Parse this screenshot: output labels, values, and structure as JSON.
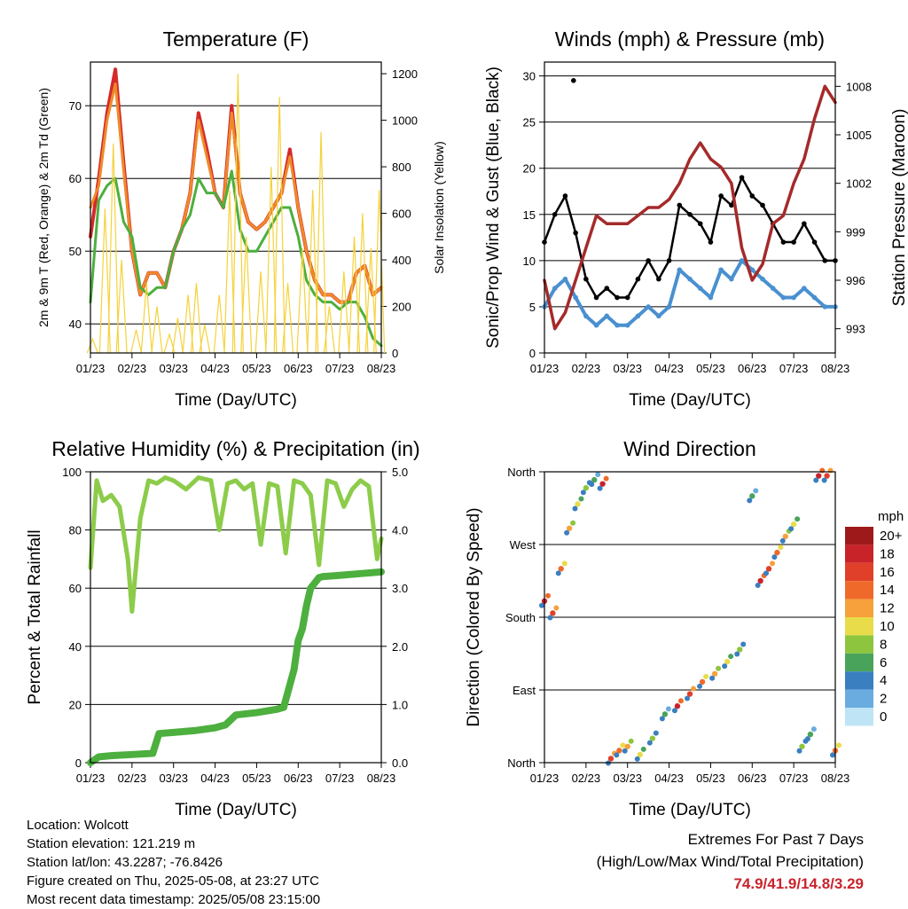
{
  "chart_data": [
    {
      "type": "line",
      "id": "temperature",
      "title": "Temperature (F)",
      "xlabel": "Time (Day/UTC)",
      "ylabel": "2m & 9m T (Red, Orange) & 2m Td (Green)",
      "y2label": "Solar Insolation (Yellow)",
      "x_ticks": [
        "01/23",
        "02/23",
        "03/23",
        "04/23",
        "05/23",
        "06/23",
        "07/23",
        "08/23"
      ],
      "ylim": [
        36,
        76
      ],
      "y_ticks": [
        40,
        50,
        60,
        70
      ],
      "y2lim": [
        0,
        1250
      ],
      "y2_ticks": [
        0,
        200,
        400,
        600,
        800,
        1000,
        1200
      ],
      "series": [
        {
          "key": "t2m",
          "color": "#d42a2a",
          "x": [
            0,
            0.2,
            0.4,
            0.6,
            0.8,
            1.0,
            1.2,
            1.4,
            1.6,
            1.8,
            2.0,
            2.2,
            2.4,
            2.6,
            2.8,
            3.0,
            3.2,
            3.4,
            3.6,
            3.8,
            4.0,
            4.2,
            4.4,
            4.6,
            4.8,
            5.0,
            5.2,
            5.4,
            5.6,
            5.8,
            6.0,
            6.2,
            6.4,
            6.6,
            6.8,
            7.0
          ],
          "values": [
            52,
            60,
            69,
            75,
            62,
            50,
            44,
            47,
            47,
            45,
            50,
            53,
            58,
            69,
            64,
            58,
            56,
            70,
            58,
            54,
            53,
            54,
            56,
            58,
            64,
            56,
            50,
            46,
            44,
            44,
            43,
            43,
            47,
            48,
            44,
            45
          ]
        },
        {
          "key": "t9m",
          "color": "#ef8a2a",
          "x": [
            0,
            0.2,
            0.4,
            0.6,
            0.8,
            1.0,
            1.2,
            1.4,
            1.6,
            1.8,
            2.0,
            2.2,
            2.4,
            2.6,
            2.8,
            3.0,
            3.2,
            3.4,
            3.6,
            3.8,
            4.0,
            4.2,
            4.4,
            4.6,
            4.8,
            5.0,
            5.2,
            5.4,
            5.6,
            5.8,
            6.0,
            6.2,
            6.4,
            6.6,
            6.8,
            7.0
          ],
          "values": [
            56,
            59,
            68,
            73,
            61,
            50,
            44,
            47,
            47,
            45,
            50,
            53,
            58,
            68,
            63,
            58,
            56,
            69,
            58,
            54,
            53,
            54,
            56,
            58,
            63,
            56,
            50,
            46,
            44,
            44,
            43,
            43,
            47,
            48,
            44,
            45
          ]
        },
        {
          "key": "td2m",
          "color": "#4caf3e",
          "x": [
            0,
            0.2,
            0.4,
            0.6,
            0.8,
            1.0,
            1.2,
            1.4,
            1.6,
            1.8,
            2.0,
            2.2,
            2.4,
            2.6,
            2.8,
            3.0,
            3.2,
            3.4,
            3.6,
            3.8,
            4.0,
            4.2,
            4.4,
            4.6,
            4.8,
            5.0,
            5.2,
            5.4,
            5.6,
            5.8,
            6.0,
            6.2,
            6.4,
            6.6,
            6.8,
            7.0
          ],
          "values": [
            43,
            57,
            59,
            60,
            54,
            52,
            45,
            44,
            45,
            45,
            50,
            53,
            55,
            60,
            58,
            58,
            56,
            61,
            53,
            50,
            50,
            52,
            54,
            56,
            56,
            52,
            46,
            44,
            43,
            43,
            42,
            43,
            43,
            41,
            38,
            37
          ]
        },
        {
          "key": "solar",
          "color": "#f5d23a",
          "x": [
            0.05,
            0.35,
            0.55,
            0.75,
            1.1,
            1.35,
            1.6,
            1.9,
            2.1,
            2.35,
            2.55,
            2.75,
            3.1,
            3.35,
            3.55,
            3.75,
            4.1,
            4.35,
            4.55,
            4.75,
            5.1,
            5.35,
            5.55,
            5.75,
            6.1,
            6.35,
            6.55,
            6.75,
            6.95
          ],
          "values": [
            60,
            620,
            900,
            400,
            100,
            300,
            200,
            80,
            150,
            250,
            300,
            120,
            250,
            700,
            1200,
            500,
            350,
            800,
            1100,
            300,
            450,
            700,
            950,
            200,
            350,
            500,
            600,
            450,
            700
          ]
        }
      ]
    },
    {
      "type": "scatter",
      "id": "winds",
      "title": "Winds (mph) & Pressure (mb)",
      "xlabel": "Time (Day/UTC)",
      "ylabel": "Sonic/Prop Wind & Gust (Blue, Black)",
      "y2label": "Station Pressure (Maroon)",
      "x_ticks": [
        "01/23",
        "02/23",
        "03/23",
        "04/23",
        "05/23",
        "06/23",
        "07/23",
        "08/23"
      ],
      "ylim": [
        0,
        31.5
      ],
      "y_ticks": [
        0,
        5,
        10,
        15,
        20,
        25,
        30
      ],
      "y2lim": [
        991.5,
        1009.5
      ],
      "y2_ticks": [
        993,
        996,
        999,
        1002,
        1005,
        1008
      ],
      "series": [
        {
          "key": "wind",
          "color": "#4a90d0",
          "x": [
            0,
            0.25,
            0.5,
            0.75,
            1.0,
            1.25,
            1.5,
            1.75,
            2.0,
            2.25,
            2.5,
            2.75,
            3.0,
            3.25,
            3.5,
            3.75,
            4.0,
            4.25,
            4.5,
            4.75,
            5.0,
            5.25,
            5.5,
            5.75,
            6.0,
            6.25,
            6.5,
            6.75,
            7.0
          ],
          "values": [
            5,
            7,
            8,
            6,
            4,
            3,
            4,
            3,
            3,
            4,
            5,
            4,
            5,
            9,
            8,
            7,
            6,
            9,
            8,
            10,
            9,
            8,
            7,
            6,
            6,
            7,
            6,
            5,
            5
          ]
        },
        {
          "key": "gust",
          "color": "#000000",
          "x": [
            0,
            0.25,
            0.5,
            0.75,
            1.0,
            1.25,
            1.5,
            1.75,
            2.0,
            2.25,
            2.5,
            2.75,
            3.0,
            3.25,
            3.5,
            3.75,
            4.0,
            4.25,
            4.5,
            4.75,
            5.0,
            5.25,
            5.5,
            5.75,
            6.0,
            6.25,
            6.5,
            6.75,
            7.0
          ],
          "values": [
            12,
            15,
            17,
            13,
            8,
            6,
            7,
            6,
            6,
            8,
            10,
            8,
            10,
            16,
            15,
            14,
            12,
            17,
            16,
            19,
            17,
            16,
            14,
            12,
            12,
            14,
            12,
            10,
            10
          ]
        },
        {
          "key": "pressure",
          "color": "#a52a2a",
          "x": [
            0,
            0.25,
            0.5,
            0.75,
            1.0,
            1.25,
            1.5,
            1.75,
            2.0,
            2.25,
            2.5,
            2.75,
            3.0,
            3.25,
            3.5,
            3.75,
            4.0,
            4.25,
            4.5,
            4.75,
            5.0,
            5.25,
            5.5,
            5.75,
            6.0,
            6.25,
            6.5,
            6.75,
            7.0
          ],
          "values": [
            996,
            993,
            994,
            996,
            998,
            1000,
            999.5,
            999.5,
            999.5,
            1000,
            1000.5,
            1000.5,
            1001,
            1002,
            1003.5,
            1004.5,
            1003.5,
            1003,
            1002,
            998,
            996,
            997,
            999.5,
            1000,
            1002,
            1003.5,
            1006,
            1008,
            1007
          ]
        },
        {
          "key": "gust_outlier",
          "color": "#000000",
          "x": [
            0.7
          ],
          "values": [
            29.5
          ]
        }
      ]
    },
    {
      "type": "line",
      "id": "humidity",
      "title": "Relative Humidity (%) & Precipitation (in)",
      "xlabel": "Time (Day/UTC)",
      "ylabel": "Percent & Total Rainfall",
      "x_ticks": [
        "01/23",
        "02/23",
        "03/23",
        "04/23",
        "05/23",
        "06/23",
        "07/23",
        "08/23"
      ],
      "ylim": [
        0,
        100
      ],
      "y_ticks": [
        0,
        20,
        40,
        60,
        80,
        100
      ],
      "y2lim": [
        0,
        5
      ],
      "y2_ticks": [
        "0.0",
        "1.0",
        "2.0",
        "3.0",
        "4.0",
        "5.0"
      ],
      "series": [
        {
          "key": "rh",
          "color": "#8ccc4a",
          "x": [
            0,
            0.15,
            0.3,
            0.5,
            0.7,
            0.9,
            1.0,
            1.2,
            1.4,
            1.6,
            1.8,
            2.0,
            2.3,
            2.6,
            2.9,
            3.1,
            3.3,
            3.5,
            3.7,
            3.9,
            4.1,
            4.3,
            4.5,
            4.7,
            4.9,
            5.1,
            5.3,
            5.5,
            5.7,
            5.9,
            6.1,
            6.3,
            6.5,
            6.7,
            6.9,
            7.0
          ],
          "values": [
            67,
            97,
            90,
            92,
            88,
            70,
            52,
            84,
            97,
            96,
            98,
            97,
            94,
            98,
            97,
            80,
            96,
            97,
            94,
            96,
            75,
            96,
            95,
            72,
            97,
            96,
            92,
            68,
            97,
            96,
            88,
            94,
            97,
            95,
            70,
            77
          ]
        },
        {
          "key": "rain",
          "color": "#4caf3e",
          "x": [
            0,
            0.2,
            0.5,
            1.0,
            1.5,
            1.65,
            2.0,
            2.5,
            3.0,
            3.25,
            3.5,
            4.0,
            4.5,
            4.65,
            4.9,
            5.0,
            5.1,
            5.2,
            5.3,
            5.5,
            5.6,
            6.0,
            6.5,
            7.0
          ],
          "values": [
            0,
            0.1,
            0.12,
            0.14,
            0.16,
            0.5,
            0.52,
            0.55,
            0.6,
            0.65,
            0.82,
            0.86,
            0.92,
            0.95,
            1.6,
            2.1,
            2.3,
            2.7,
            3.0,
            3.18,
            3.2,
            3.22,
            3.25,
            3.28
          ]
        }
      ]
    },
    {
      "type": "scatter",
      "id": "direction",
      "title": "Wind Direction",
      "xlabel": "Time (Day/UTC)",
      "ylabel": "Direction (Colored By Speed)",
      "x_ticks": [
        "01/23",
        "02/23",
        "03/23",
        "04/23",
        "05/23",
        "06/23",
        "07/23",
        "08/23"
      ],
      "ylim": [
        0,
        360
      ],
      "y_ticks": [
        "North",
        "East",
        "South",
        "West",
        "North"
      ],
      "legend_title": "mph",
      "legend_labels": [
        "20+",
        "18",
        "16",
        "14",
        "12",
        "10",
        "8",
        "6",
        "4",
        "2",
        "0"
      ],
      "legend_colors": [
        "#9e1a1a",
        "#c9232a",
        "#e0402a",
        "#ef6a2a",
        "#f6a13c",
        "#e8dc4a",
        "#8dc53e",
        "#4aa35a",
        "#3a7fbf",
        "#6aace0",
        "#bfe4f6"
      ],
      "legend_placement": "right",
      "series": [
        {
          "key": "dir",
          "color": "#3a7fbf",
          "x": [
            0,
            0.2,
            0.4,
            0.6,
            0.8,
            1.0,
            1.2,
            1.4,
            1.6,
            1.8,
            2.0,
            2.3,
            2.6,
            2.9,
            3.2,
            3.5,
            3.8,
            4.1,
            4.4,
            4.7,
            5.0,
            5.2,
            5.4,
            5.6,
            5.8,
            6.0,
            6.2,
            6.4,
            6.6,
            6.8,
            7.0
          ],
          "values": [
            200,
            185,
            240,
            290,
            320,
            340,
            350,
            345,
            5,
            15,
            20,
            10,
            30,
            60,
            70,
            85,
            100,
            110,
            125,
            140,
            330,
            225,
            240,
            260,
            280,
            295,
            20,
            35,
            355,
            355,
            15
          ]
        }
      ]
    }
  ],
  "info": {
    "location": "Location: Wolcott",
    "elevation": "Station elevation: 121.219 m",
    "latlon": "Station lat/lon: 43.2287; -76.8426",
    "created": "Figure created on Thu, 2025-05-08, at 23:27 UTC",
    "recent": "Most recent data timestamp: 2025/05/08 23:15:00"
  },
  "extremes": {
    "title": "Extremes For Past 7 Days",
    "subtitle": "(High/Low/Max Wind/Total Precipitation)",
    "values": "74.9/41.9/14.8/3.29"
  }
}
